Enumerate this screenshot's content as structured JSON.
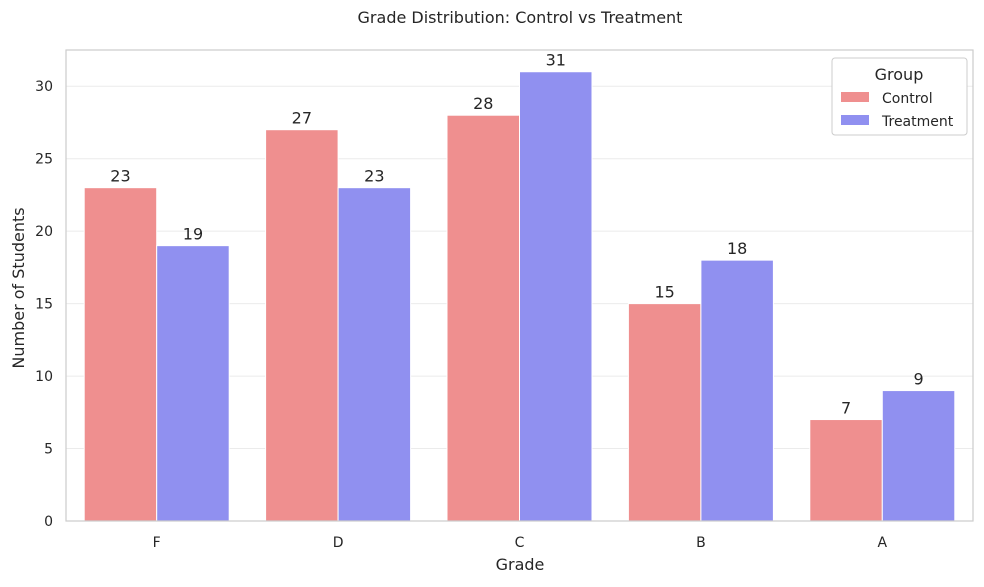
{
  "chart_data": {
    "type": "bar",
    "title": "Grade Distribution: Control vs Treatment",
    "xlabel": "Grade",
    "ylabel": "Number of Students",
    "categories": [
      "F",
      "D",
      "C",
      "B",
      "A"
    ],
    "series": [
      {
        "name": "Control",
        "values": [
          23,
          27,
          28,
          15,
          7
        ],
        "color": "#ef8f8f"
      },
      {
        "name": "Treatment",
        "values": [
          19,
          23,
          31,
          18,
          9
        ],
        "color": "#9090f0"
      }
    ],
    "ylim": [
      0,
      32.5
    ],
    "yticks": [
      0,
      5,
      10,
      15,
      20,
      25,
      30
    ],
    "grid": true,
    "legend": {
      "title": "Group",
      "placement": "top-right"
    }
  }
}
